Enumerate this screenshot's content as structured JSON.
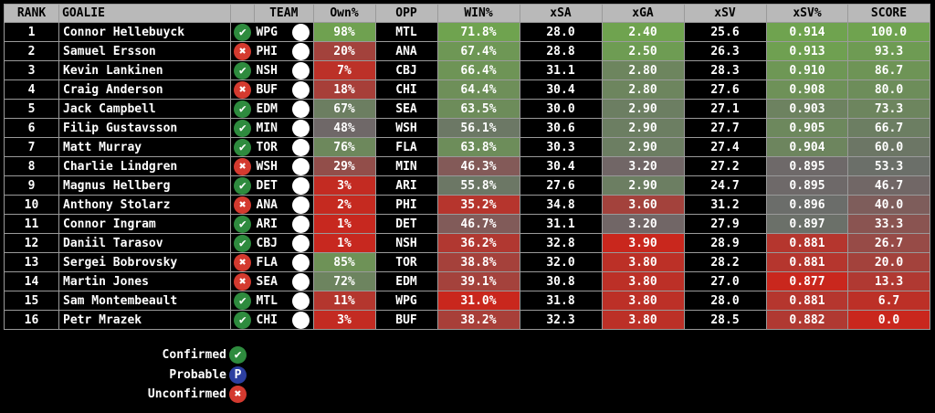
{
  "headers": {
    "rank": "RANK",
    "goalie": "GOALIE",
    "team": "TEAM",
    "own": "Own%",
    "opp": "OPP",
    "win": "WIN%",
    "xsa": "xSA",
    "xga": "xGA",
    "xsv": "xSV",
    "xsvp": "xSV%",
    "score": "SCORE"
  },
  "colors": {
    "green": "#6fa34f",
    "neutral": "#6b6b6b",
    "red": "#c9271d",
    "confirmed": "#2e8b3e",
    "unconfirmed": "#d43a2f",
    "probable": "#2c3fa0"
  },
  "rows": [
    {
      "rank": "1",
      "goalie": "Connor Hellebuyck",
      "status": "confirmed",
      "team": "WPG",
      "own": "98%",
      "opp": "MTL",
      "win": "71.8%",
      "xsa": "28.0",
      "xga": "2.40",
      "xsv": "25.6",
      "xsvp": "0.914",
      "score": "100.0"
    },
    {
      "rank": "2",
      "goalie": "Samuel Ersson",
      "status": "unconfirmed",
      "team": "PHI",
      "own": "20%",
      "opp": "ANA",
      "win": "67.4%",
      "xsa": "28.8",
      "xga": "2.50",
      "xsv": "26.3",
      "xsvp": "0.913",
      "score": "93.3"
    },
    {
      "rank": "3",
      "goalie": "Kevin Lankinen",
      "status": "confirmed",
      "team": "NSH",
      "own": "7%",
      "opp": "CBJ",
      "win": "66.4%",
      "xsa": "31.1",
      "xga": "2.80",
      "xsv": "28.3",
      "xsvp": "0.910",
      "score": "86.7"
    },
    {
      "rank": "4",
      "goalie": "Craig Anderson",
      "status": "unconfirmed",
      "team": "BUF",
      "own": "18%",
      "opp": "CHI",
      "win": "64.4%",
      "xsa": "30.4",
      "xga": "2.80",
      "xsv": "27.6",
      "xsvp": "0.908",
      "score": "80.0"
    },
    {
      "rank": "5",
      "goalie": "Jack Campbell",
      "status": "confirmed",
      "team": "EDM",
      "own": "67%",
      "opp": "SEA",
      "win": "63.5%",
      "xsa": "30.0",
      "xga": "2.90",
      "xsv": "27.1",
      "xsvp": "0.903",
      "score": "73.3"
    },
    {
      "rank": "6",
      "goalie": "Filip Gustavsson",
      "status": "confirmed",
      "team": "MIN",
      "own": "48%",
      "opp": "WSH",
      "win": "56.1%",
      "xsa": "30.6",
      "xga": "2.90",
      "xsv": "27.7",
      "xsvp": "0.905",
      "score": "66.7"
    },
    {
      "rank": "7",
      "goalie": "Matt Murray",
      "status": "confirmed",
      "team": "TOR",
      "own": "76%",
      "opp": "FLA",
      "win": "63.8%",
      "xsa": "30.3",
      "xga": "2.90",
      "xsv": "27.4",
      "xsvp": "0.904",
      "score": "60.0"
    },
    {
      "rank": "8",
      "goalie": "Charlie Lindgren",
      "status": "unconfirmed",
      "team": "WSH",
      "own": "29%",
      "opp": "MIN",
      "win": "46.3%",
      "xsa": "30.4",
      "xga": "3.20",
      "xsv": "27.2",
      "xsvp": "0.895",
      "score": "53.3"
    },
    {
      "rank": "9",
      "goalie": "Magnus Hellberg",
      "status": "confirmed",
      "team": "DET",
      "own": "3%",
      "opp": "ARI",
      "win": "55.8%",
      "xsa": "27.6",
      "xga": "2.90",
      "xsv": "24.7",
      "xsvp": "0.895",
      "score": "46.7"
    },
    {
      "rank": "10",
      "goalie": "Anthony Stolarz",
      "status": "unconfirmed",
      "team": "ANA",
      "own": "2%",
      "opp": "PHI",
      "win": "35.2%",
      "xsa": "34.8",
      "xga": "3.60",
      "xsv": "31.2",
      "xsvp": "0.896",
      "score": "40.0"
    },
    {
      "rank": "11",
      "goalie": "Connor Ingram",
      "status": "confirmed",
      "team": "ARI",
      "own": "1%",
      "opp": "DET",
      "win": "46.7%",
      "xsa": "31.1",
      "xga": "3.20",
      "xsv": "27.9",
      "xsvp": "0.897",
      "score": "33.3"
    },
    {
      "rank": "12",
      "goalie": "Daniil Tarasov",
      "status": "confirmed",
      "team": "CBJ",
      "own": "1%",
      "opp": "NSH",
      "win": "36.2%",
      "xsa": "32.8",
      "xga": "3.90",
      "xsv": "28.9",
      "xsvp": "0.881",
      "score": "26.7"
    },
    {
      "rank": "13",
      "goalie": "Sergei Bobrovsky",
      "status": "unconfirmed",
      "team": "FLA",
      "own": "85%",
      "opp": "TOR",
      "win": "38.8%",
      "xsa": "32.0",
      "xga": "3.80",
      "xsv": "28.2",
      "xsvp": "0.881",
      "score": "20.0"
    },
    {
      "rank": "14",
      "goalie": "Martin Jones",
      "status": "unconfirmed",
      "team": "SEA",
      "own": "72%",
      "opp": "EDM",
      "win": "39.1%",
      "xsa": "30.8",
      "xga": "3.80",
      "xsv": "27.0",
      "xsvp": "0.877",
      "score": "13.3"
    },
    {
      "rank": "15",
      "goalie": "Sam Montembeault",
      "status": "confirmed",
      "team": "MTL",
      "own": "11%",
      "opp": "WPG",
      "win": "31.0%",
      "xsa": "31.8",
      "xga": "3.80",
      "xsv": "28.0",
      "xsvp": "0.881",
      "score": "6.7"
    },
    {
      "rank": "16",
      "goalie": "Petr Mrazek",
      "status": "confirmed",
      "team": "CHI",
      "own": "3%",
      "opp": "BUF",
      "win": "38.2%",
      "xsa": "32.3",
      "xga": "3.80",
      "xsv": "28.5",
      "xsvp": "0.882",
      "score": "0.0"
    }
  ],
  "legend": [
    {
      "label": "Confirmed",
      "status": "confirmed",
      "icon": "check-icon"
    },
    {
      "label": "Probable",
      "status": "probable",
      "icon": "P"
    },
    {
      "label": "Unconfirmed",
      "status": "unconfirmed",
      "icon": "x-icon"
    }
  ]
}
